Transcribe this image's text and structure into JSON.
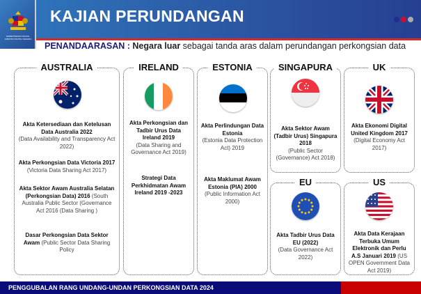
{
  "header": {
    "title": "KAJIAN PERUNDANGAN",
    "logo_text": [
      "KEMENTERIAN DIGITAL",
      "JABATAN DIGITAL NEGARA"
    ],
    "dot_colors": [
      "#1f2f8f",
      "#c8102e",
      "#aaaaaa"
    ]
  },
  "subtitle": {
    "label": "PENANDAARASAN :",
    "bold": "Negara luar",
    "rest": "sebagai tanda aras dalam perundangan perkongsian data"
  },
  "countries": {
    "australia": {
      "name": "AUSTRALIA",
      "entries": [
        {
          "bold": "Akta Ketersediaan dan Ketelusan Data Australia 2022",
          "text": "(Data Availability and Transparency Act 2022)"
        },
        {
          "bold": "Akta Perkongsian Data Victoria 2017",
          "text": "(Victoria Data Sharing Act  2017)"
        },
        {
          "bold": "Akta Sektor Awam Australia Selatan (Perkongsian Data) 2016",
          "text": "(South Australia Public Sector (Governance Act 2016 (Data Sharing )"
        },
        {
          "bold": "Dasar Perkongsian Data Sektor Awam",
          "text": "(Public Sector Data Sharing Policy"
        }
      ]
    },
    "ireland": {
      "name": "IRELAND",
      "entries": [
        {
          "bold": "Akta Perkongsian dan Tadbir Urus Data Ireland 2019",
          "text": "(Data Sharing and Governance Act 2019)"
        },
        {
          "bold": "Strategi Data Perkhidmatan Awam Ireland 2019 -2023",
          "text": ""
        }
      ]
    },
    "estonia": {
      "name": "ESTONIA",
      "entries": [
        {
          "bold": "Akta Perlindungan Data Estonia",
          "text": "(Estonia Data Protection Act) 2019"
        },
        {
          "bold": "Akta Maklumat  Awam Estonia (PIA) 2000",
          "text": "(Public Information Act 2000)"
        }
      ]
    },
    "singapura": {
      "name": "SINGAPURA",
      "entries": [
        {
          "bold": "Akta Sektor Awam (Tadbir Urus) Singapura 2018",
          "text": "(Public Sector (Governance) Act 2018)"
        }
      ]
    },
    "uk": {
      "name": "UK",
      "entries": [
        {
          "bold": "Akta Ekonomi Digital United Kingdom 2017",
          "text": "(Digital Economy Act 2017)"
        }
      ]
    },
    "eu": {
      "name": "EU",
      "entries": [
        {
          "bold": "Akta Tadbir Urus Data EU (2022)",
          "text": "(Data Governance Act 2022)"
        }
      ]
    },
    "us": {
      "name": "US",
      "entries": [
        {
          "bold": "Akta Data Kerajaan Terbuka Umum Elektronik dan Perlu A.S Januari 2019",
          "text": "(US OPEN Government Data Act 2019)"
        }
      ]
    }
  },
  "footer": {
    "text": "PENGGUBALAN RANG UNDANG-UNDAN PERKONGSIAN DATA 2024"
  }
}
